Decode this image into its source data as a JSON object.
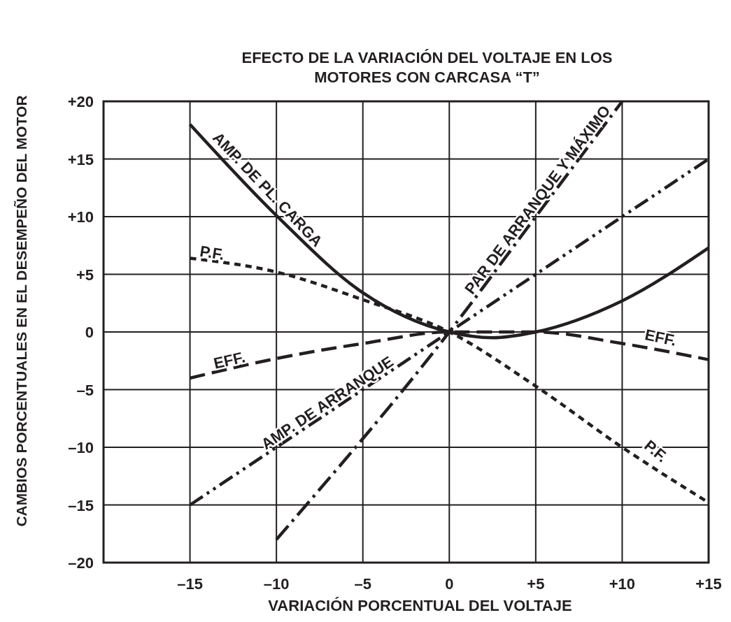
{
  "chart_data": {
    "type": "line",
    "title": "EFECTO DE LA VARIACIÓN DEL VOLTAJE EN LOS\nMOTORES CON CARCASA “T”",
    "xlabel": "VARIACIÓN PORCENTUAL DEL VOLTAJE",
    "ylabel": "CAMBIOS PORCENTUALES EN EL DESEMPEÑO DEL MOTOR",
    "xlim": [
      -20,
      15
    ],
    "xticks": [
      {
        "value": -20,
        "label": null
      },
      {
        "value": -15,
        "label": "–15"
      },
      {
        "value": -10,
        "label": "–10"
      },
      {
        "value": -5,
        "label": "–5"
      },
      0,
      {
        "value": 5,
        "label": "+5"
      },
      {
        "value": 10,
        "label": "+10"
      },
      {
        "value": 15,
        "label": "+15"
      }
    ],
    "ylim": [
      -20,
      20
    ],
    "yticks": [
      {
        "value": -20,
        "label": "–20"
      },
      {
        "value": -15,
        "label": "–15"
      },
      {
        "value": -10,
        "label": "–10"
      },
      {
        "value": -5,
        "label": "–5"
      },
      0,
      {
        "value": 5,
        "label": "+5"
      },
      {
        "value": 10,
        "label": "+10"
      },
      {
        "value": 15,
        "label": "+15"
      },
      {
        "value": 20,
        "label": "+20"
      }
    ],
    "grid": true,
    "marker": "none",
    "series": [
      {
        "name": "AMP. DE PL. CARGA",
        "color": "#231f20",
        "line_style": "solid",
        "x": [
          -15,
          -10,
          -5,
          0,
          2.5,
          5,
          10,
          15
        ],
        "values": [
          18,
          10.1,
          3.4,
          0,
          -0.5,
          0,
          2.7,
          7.3
        ]
      },
      {
        "name": "P.F.",
        "color": "#231f20",
        "line_style": "dotted",
        "x": [
          -15,
          -10,
          -5,
          0,
          5,
          10,
          15
        ],
        "values": [
          6.4,
          5.2,
          2.8,
          0,
          -4.7,
          -10,
          -14.8
        ]
      },
      {
        "name": "EFF.",
        "color": "#231f20",
        "line_style": "dashed",
        "x": [
          -15,
          -10,
          -5,
          0,
          5,
          10,
          15
        ],
        "values": [
          -4,
          -2.3,
          -1,
          0,
          0,
          -1,
          -2.4
        ]
      },
      {
        "name": "AMP. DE ARRANQUE",
        "color": "#231f20",
        "line_style": "dashdotdot",
        "x": [
          -15,
          0,
          15
        ],
        "values": [
          -15,
          0,
          15
        ]
      },
      {
        "name": "PAR DE ARRANQUE Y MÁXIMO",
        "color": "#231f20",
        "line_style": "dashdot",
        "x": [
          -10,
          0,
          5,
          10
        ],
        "values": [
          -18,
          0,
          10,
          20
        ]
      }
    ],
    "annotations": [
      {
        "text": "P.F.",
        "x": 10,
        "y": -10
      },
      {
        "text": "EFF.",
        "x": 10,
        "y": -1
      }
    ]
  }
}
